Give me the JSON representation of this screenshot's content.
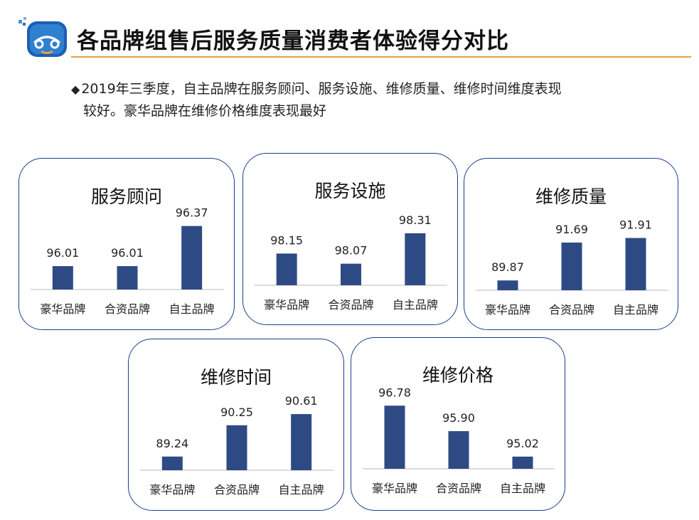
{
  "header": {
    "title": "各品牌组售后服务质量消费者体验得分对比",
    "logo_icon": "car-logo-icon"
  },
  "summary": {
    "bullet": "◆",
    "line1": "2019年三季度，自主品牌在服务顾问、服务设施、维修质量、维修时间维度表现",
    "line2": "较好。豪华品牌在维修价格维度表现最好"
  },
  "colors": {
    "bar": "#2e4a85",
    "border": "#1f3d8a",
    "accent": "#e8a33d",
    "axis": "#d0d0d0"
  },
  "chart_data": [
    {
      "type": "bar",
      "title": "服务顾问",
      "categories": [
        "豪华品牌",
        "合资品牌",
        "自主品牌"
      ],
      "values": [
        96.01,
        96.01,
        96.37
      ],
      "labels": [
        "96.01",
        "96.01",
        "96.37"
      ],
      "ylim": [
        95.8,
        96.4
      ]
    },
    {
      "type": "bar",
      "title": "服务设施",
      "categories": [
        "豪华品牌",
        "合资品牌",
        "自主品牌"
      ],
      "values": [
        98.15,
        98.07,
        98.31
      ],
      "labels": [
        "98.15",
        "98.07",
        "98.31"
      ],
      "ylim": [
        97.9,
        98.36
      ]
    },
    {
      "type": "bar",
      "title": "维修质量",
      "categories": [
        "豪华品牌",
        "合资品牌",
        "自主品牌"
      ],
      "values": [
        89.87,
        91.69,
        91.91
      ],
      "labels": [
        "89.87",
        "91.69",
        "91.91"
      ],
      "ylim": [
        89.4,
        92.1
      ]
    },
    {
      "type": "bar",
      "title": "维修时间",
      "categories": [
        "豪华品牌",
        "合资品牌",
        "自主品牌"
      ],
      "values": [
        89.24,
        90.25,
        90.61
      ],
      "labels": [
        "89.24",
        "90.25",
        "90.61"
      ],
      "ylim": [
        88.8,
        90.75
      ]
    },
    {
      "type": "bar",
      "title": "维修价格",
      "categories": [
        "豪华品牌",
        "合资品牌",
        "自主品牌"
      ],
      "values": [
        96.78,
        95.9,
        95.02
      ],
      "labels": [
        "96.78",
        "95.90",
        "95.02"
      ],
      "ylim": [
        94.6,
        96.86
      ]
    }
  ]
}
